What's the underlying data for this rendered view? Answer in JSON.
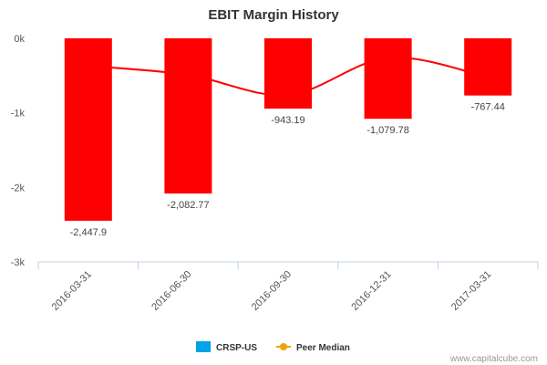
{
  "chart_data": {
    "type": "bar",
    "title": "EBIT Margin History",
    "categories": [
      "2016-03-31",
      "2016-06-30",
      "2016-09-30",
      "2016-12-31",
      "2017-03-31"
    ],
    "series": [
      {
        "name": "CRSP-US",
        "type": "bar",
        "values": [
          -2447.9,
          -2082.77,
          -943.19,
          -1079.78,
          -767.44
        ],
        "labels": [
          "-2,447.9",
          "-2,082.77",
          "-943.19",
          "-1,079.78",
          "-767.44"
        ],
        "bar_color": "#ff0000",
        "legend_color": "#00a2e8"
      },
      {
        "name": "Peer Median",
        "type": "line",
        "values": [
          -370,
          -490,
          -760,
          -260,
          -520
        ],
        "color": "#ff0000",
        "legend_color": "#f0a30a"
      }
    ],
    "ylim": [
      -3000,
      0
    ],
    "yticks": [
      0,
      -1000,
      -2000,
      -3000
    ],
    "ytick_labels": [
      "0k",
      "-1k",
      "-2k",
      "-3k"
    ],
    "xlabel": "",
    "ylabel": "",
    "grid": false,
    "legend_position": "bottom-center"
  },
  "credit": "www.capitalcube.com",
  "colors": {
    "axis": "#c0d0e0",
    "text": "#333333"
  }
}
